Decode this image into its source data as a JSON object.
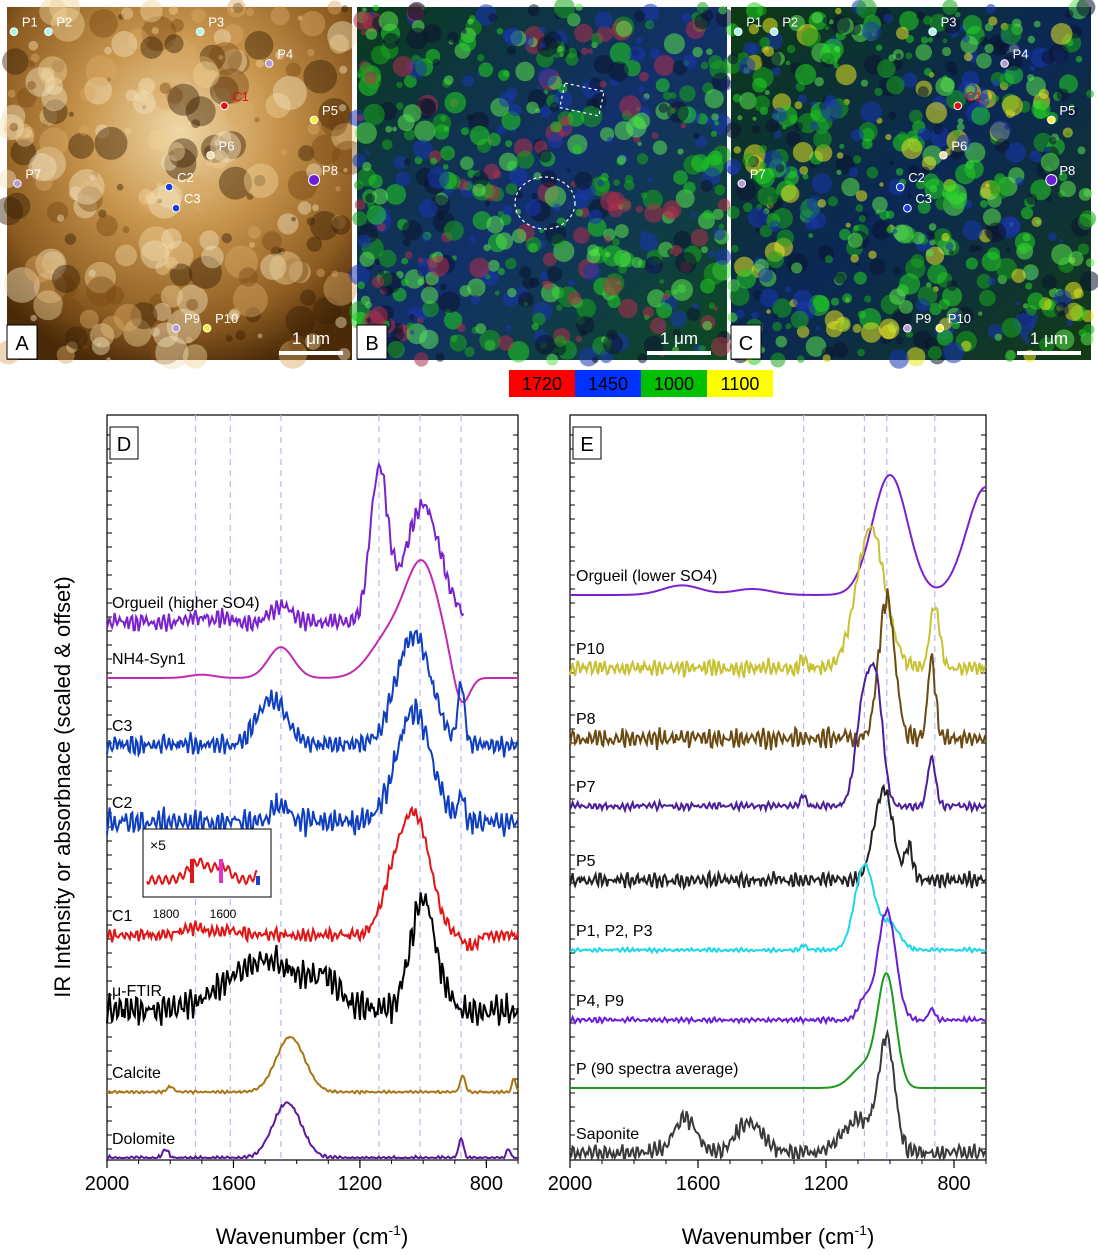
{
  "maps": {
    "scalebar": "1 μm",
    "A": {
      "tag": "A",
      "points": [
        {
          "label": "P1",
          "x": 0.02,
          "y": 0.07,
          "color": "#aef2ee"
        },
        {
          "label": "P2",
          "x": 0.12,
          "y": 0.07,
          "color": "#aef2ee"
        },
        {
          "label": "P3",
          "x": 0.56,
          "y": 0.07,
          "color": "#aef2ee"
        },
        {
          "label": "P4",
          "x": 0.76,
          "y": 0.16,
          "color": "#b79ad8"
        },
        {
          "label": "C1",
          "x": 0.63,
          "y": 0.28,
          "color": "#e11010",
          "labelColor": "#e11010"
        },
        {
          "label": "P5",
          "x": 0.89,
          "y": 0.32,
          "color": "#f4ef40"
        },
        {
          "label": "P6",
          "x": 0.59,
          "y": 0.42,
          "color": "#f2dcb0"
        },
        {
          "label": "P7",
          "x": 0.03,
          "y": 0.5,
          "color": "#b79ad8"
        },
        {
          "label": "P8",
          "x": 0.89,
          "y": 0.49,
          "color": "#6a1fd6"
        },
        {
          "label": "C2",
          "x": 0.47,
          "y": 0.51,
          "color": "#1a3fd8"
        },
        {
          "label": "C3",
          "x": 0.49,
          "y": 0.57,
          "color": "#1a3fd8"
        },
        {
          "label": "P9",
          "x": 0.49,
          "y": 0.91,
          "color": "#b79ad8"
        },
        {
          "label": "P10",
          "x": 0.58,
          "y": 0.91,
          "color": "#f4ef40"
        }
      ]
    },
    "B": {
      "tag": "B"
    },
    "C": {
      "tag": "C"
    }
  },
  "legend": [
    {
      "label": "1720",
      "color": "#ff0000"
    },
    {
      "label": "1450",
      "color": "#0033ff"
    },
    {
      "label": "1000",
      "color": "#00c000"
    },
    {
      "label": "1100",
      "color": "#ffff00"
    }
  ],
  "panelD": {
    "tag": "D",
    "ylabel": "IR Intensity or absorbnace (scaled & offset)",
    "xlabel": "Wavenumber (cm",
    "xlabel_sup": "-1",
    "xlabel_end": ")",
    "inset": {
      "mult": "×5",
      "ticks": [
        "1800",
        "1600"
      ]
    }
  },
  "panelE": {
    "tag": "E",
    "xlabel": "Wavenumber (cm",
    "xlabel_sup": "-1",
    "xlabel_end": ")"
  },
  "chart_data": [
    {
      "type": "line",
      "panel": "D",
      "xlabel": "Wavenumber (cm-1)",
      "ylabel": "IR Intensity or absorbnace (scaled & offset)",
      "xlim": [
        2000,
        700
      ],
      "xticks": [
        2000,
        1600,
        1200,
        800
      ],
      "dashed_lines": [
        1720,
        1610,
        1450,
        1140,
        1010,
        880
      ],
      "series": [
        {
          "name": "Orgueil (higher SO4)",
          "color": "#7a22cc",
          "offset": 0,
          "amp": 150,
          "peaks": [
            [
              1720,
              0.03,
              30
            ],
            [
              1630,
              0.03,
              25
            ],
            [
              1450,
              0.11,
              30
            ],
            [
              1140,
              1.0,
              28
            ],
            [
              1000,
              0.78,
              55
            ]
          ],
          "noise": 0.05,
          "xmax": 870
        },
        {
          "name": "NH4-Syn1",
          "color": "#c22ab4",
          "offset": 0,
          "amp": 110,
          "peaks": [
            [
              1700,
              0.03,
              40
            ],
            [
              1450,
              0.28,
              40
            ],
            [
              1110,
              0.35,
              60
            ],
            [
              1000,
              1.0,
              55
            ],
            [
              880,
              -0.3,
              25
            ]
          ],
          "noise": 0.0
        },
        {
          "name": "C3",
          "color": "#0f3fbf",
          "offset": 0,
          "amp": 110,
          "peaks": [
            [
              1480,
              0.42,
              45
            ],
            [
              1030,
              1.0,
              55
            ],
            [
              880,
              0.55,
              10
            ]
          ],
          "noise": 0.08
        },
        {
          "name": "C2",
          "color": "#0f3fbf",
          "offset": 0,
          "amp": 110,
          "peaks": [
            [
              1450,
              0.15,
              30
            ],
            [
              1030,
              1.0,
              55
            ],
            [
              880,
              0.2,
              10
            ]
          ],
          "noise": 0.1
        },
        {
          "name": "C1",
          "color": "#e01515",
          "offset": 0,
          "amp": 110,
          "peaks": [
            [
              1720,
              0.06,
              40
            ],
            [
              1610,
              0.05,
              30
            ],
            [
              1090,
              0.45,
              40
            ],
            [
              1020,
              1.0,
              45
            ],
            [
              850,
              -0.1,
              20
            ]
          ],
          "noise": 0.05
        },
        {
          "name": "μ-FTIR",
          "color": "#000000",
          "offset": 0,
          "amp": 110,
          "peaks": [
            [
              1500,
              0.45,
              120
            ],
            [
              1300,
              0.2,
              40
            ],
            [
              1000,
              1.0,
              40
            ]
          ],
          "noise": 0.12
        },
        {
          "name": "Calcite",
          "color": "#a87615",
          "offset": 0,
          "amp": 55,
          "peaks": [
            [
              1800,
              0.1,
              10
            ],
            [
              1420,
              1.0,
              45
            ],
            [
              875,
              0.3,
              8
            ],
            [
              713,
              0.25,
              6
            ]
          ],
          "noise": 0.02
        },
        {
          "name": "Dolomite",
          "color": "#5a1a9e",
          "offset": 0,
          "amp": 55,
          "peaks": [
            [
              1815,
              0.15,
              10
            ],
            [
              1430,
              1.0,
              45
            ],
            [
              880,
              0.35,
              8
            ],
            [
              730,
              0.18,
              6
            ]
          ],
          "noise": 0.03
        }
      ]
    },
    {
      "type": "line",
      "panel": "E",
      "xlabel": "Wavenumber (cm-1)",
      "xlim": [
        2000,
        700
      ],
      "xticks": [
        2000,
        1600,
        1200,
        800
      ],
      "dashed_lines": [
        1270,
        1080,
        1010,
        860
      ],
      "series": [
        {
          "name": "Orgueil (lower SO4)",
          "color": "#7a22cc",
          "amp": 120,
          "peaks": [
            [
              1650,
              0.08,
              60
            ],
            [
              1430,
              0.05,
              60
            ],
            [
              1000,
              1.0,
              55
            ],
            [
              700,
              0.9,
              60
            ]
          ],
          "noise": 0.0
        },
        {
          "name": "P10",
          "color": "#c7c233",
          "amp": 140,
          "peaks": [
            [
              1270,
              0.07,
              8
            ],
            [
              1060,
              1.0,
              45
            ],
            [
              860,
              0.45,
              15
            ]
          ],
          "noise": 0.05
        },
        {
          "name": "P8",
          "color": "#6b4a12",
          "amp": 140,
          "peaks": [
            [
              1010,
              1.0,
              25
            ],
            [
              870,
              0.55,
              12
            ]
          ],
          "noise": 0.06
        },
        {
          "name": "P7",
          "color": "#4b1f9a",
          "amp": 110,
          "peaks": [
            [
              1270,
              0.1,
              8
            ],
            [
              1080,
              1.0,
              25
            ],
            [
              1040,
              0.9,
              20
            ],
            [
              870,
              0.45,
              12
            ]
          ],
          "noise": 0.03
        },
        {
          "name": "P5",
          "color": "#222222",
          "amp": 90,
          "peaks": [
            [
              1020,
              1.0,
              30
            ],
            [
              940,
              0.35,
              12
            ]
          ],
          "noise": 0.07
        },
        {
          "name": "P1, P2, P3",
          "color": "#1ad8e8",
          "amp": 85,
          "peaks": [
            [
              1270,
              0.06,
              8
            ],
            [
              1080,
              1.0,
              30
            ],
            [
              1000,
              0.3,
              30
            ]
          ],
          "noise": 0.02
        },
        {
          "name": "P4, P9",
          "color": "#6a1fd6",
          "amp": 110,
          "peaks": [
            [
              1080,
              0.18,
              20
            ],
            [
              1010,
              1.0,
              28
            ],
            [
              870,
              0.1,
              10
            ]
          ],
          "noise": 0.02
        },
        {
          "name": "P (90 spectra average)",
          "color": "#1e9a1e",
          "amp": 110,
          "peaks": [
            [
              1010,
              1.0,
              28
            ],
            [
              1080,
              0.2,
              40
            ]
          ],
          "noise": 0.0
        },
        {
          "name": "Saponite",
          "color": "#3a3a3a",
          "amp": 110,
          "peaks": [
            [
              1640,
              0.32,
              35
            ],
            [
              1440,
              0.28,
              40
            ],
            [
              1100,
              0.3,
              50
            ],
            [
              1010,
              1.0,
              25
            ]
          ],
          "noise": 0.07
        }
      ]
    }
  ]
}
